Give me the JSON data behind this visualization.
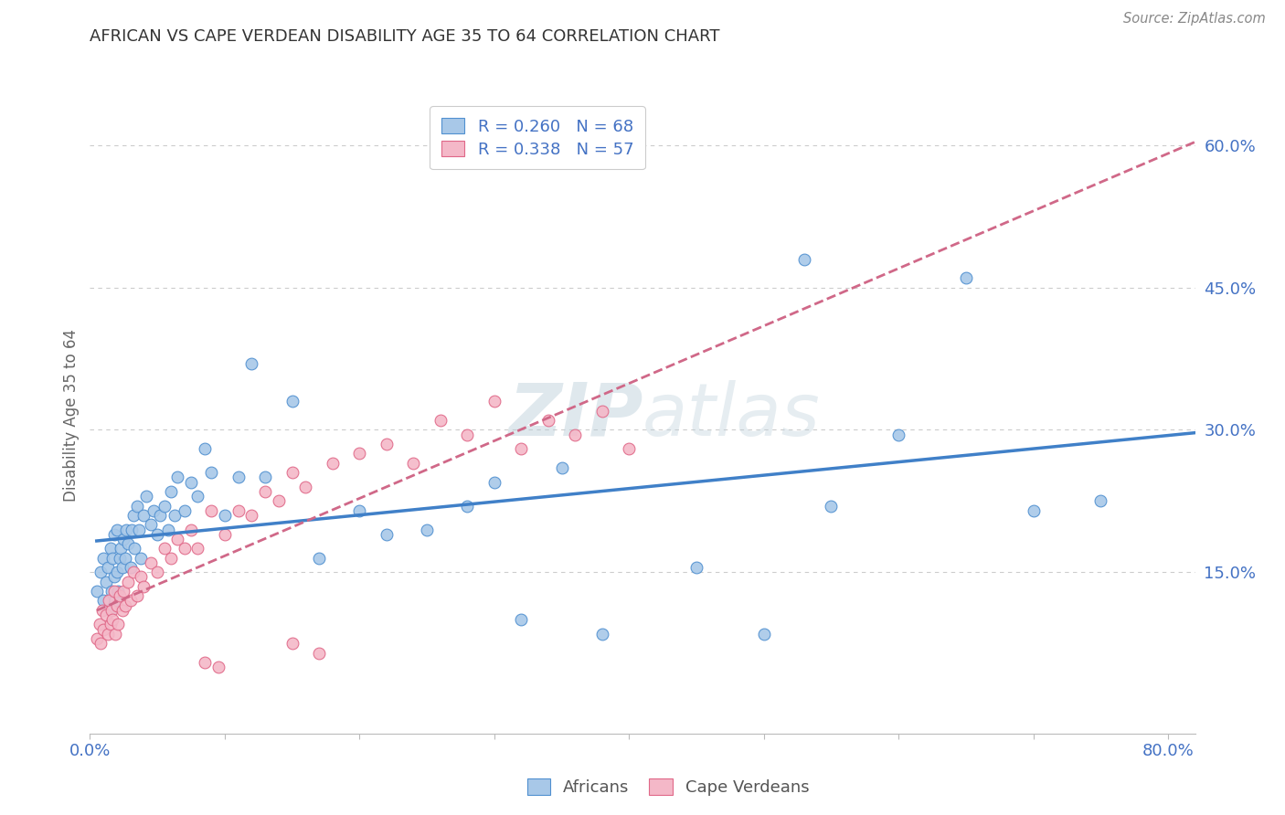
{
  "title": "AFRICAN VS CAPE VERDEAN DISABILITY AGE 35 TO 64 CORRELATION CHART",
  "source_text": "Source: ZipAtlas.com",
  "ylabel": "Disability Age 35 to 64",
  "xlim": [
    0.0,
    0.82
  ],
  "ylim": [
    -0.02,
    0.65
  ],
  "xtick_positions": [
    0.0,
    0.1,
    0.2,
    0.3,
    0.4,
    0.5,
    0.6,
    0.7,
    0.8
  ],
  "xticklabels": [
    "0.0%",
    "",
    "",
    "",
    "",
    "",
    "",
    "",
    "80.0%"
  ],
  "ytick_positions": [
    0.15,
    0.3,
    0.45,
    0.6
  ],
  "ytick_labels": [
    "15.0%",
    "30.0%",
    "45.0%",
    "60.0%"
  ],
  "african_R": 0.26,
  "african_N": 68,
  "cape_verdean_R": 0.338,
  "cape_verdean_N": 57,
  "african_color": "#a8c8e8",
  "cape_verdean_color": "#f4b8c8",
  "african_edge_color": "#5090d0",
  "cape_verdean_edge_color": "#e06888",
  "african_line_color": "#4080c8",
  "cape_verdean_line_color": "#d06888",
  "watermark_color": "#c8d8e8",
  "background_color": "#ffffff",
  "grid_color": "#cccccc",
  "african_x": [
    0.005,
    0.008,
    0.01,
    0.01,
    0.012,
    0.013,
    0.015,
    0.015,
    0.016,
    0.017,
    0.018,
    0.018,
    0.019,
    0.02,
    0.02,
    0.021,
    0.022,
    0.023,
    0.024,
    0.025,
    0.026,
    0.027,
    0.028,
    0.03,
    0.031,
    0.032,
    0.033,
    0.035,
    0.036,
    0.038,
    0.04,
    0.042,
    0.045,
    0.047,
    0.05,
    0.052,
    0.055,
    0.058,
    0.06,
    0.063,
    0.065,
    0.07,
    0.075,
    0.08,
    0.085,
    0.09,
    0.1,
    0.11,
    0.12,
    0.13,
    0.15,
    0.17,
    0.2,
    0.22,
    0.25,
    0.28,
    0.3,
    0.32,
    0.35,
    0.38,
    0.45,
    0.5,
    0.53,
    0.55,
    0.6,
    0.65,
    0.7,
    0.75
  ],
  "african_y": [
    0.13,
    0.15,
    0.12,
    0.165,
    0.14,
    0.155,
    0.11,
    0.175,
    0.13,
    0.165,
    0.145,
    0.19,
    0.12,
    0.15,
    0.195,
    0.13,
    0.165,
    0.175,
    0.155,
    0.185,
    0.165,
    0.195,
    0.18,
    0.155,
    0.195,
    0.21,
    0.175,
    0.22,
    0.195,
    0.165,
    0.21,
    0.23,
    0.2,
    0.215,
    0.19,
    0.21,
    0.22,
    0.195,
    0.235,
    0.21,
    0.25,
    0.215,
    0.245,
    0.23,
    0.28,
    0.255,
    0.21,
    0.25,
    0.37,
    0.25,
    0.33,
    0.165,
    0.215,
    0.19,
    0.195,
    0.22,
    0.245,
    0.1,
    0.26,
    0.085,
    0.155,
    0.085,
    0.48,
    0.22,
    0.295,
    0.46,
    0.215,
    0.225
  ],
  "cape_verdean_x": [
    0.005,
    0.007,
    0.008,
    0.009,
    0.01,
    0.012,
    0.013,
    0.014,
    0.015,
    0.016,
    0.017,
    0.018,
    0.019,
    0.02,
    0.021,
    0.022,
    0.024,
    0.025,
    0.026,
    0.028,
    0.03,
    0.032,
    0.035,
    0.038,
    0.04,
    0.045,
    0.05,
    0.055,
    0.06,
    0.065,
    0.07,
    0.075,
    0.08,
    0.09,
    0.1,
    0.11,
    0.12,
    0.13,
    0.14,
    0.15,
    0.16,
    0.18,
    0.2,
    0.22,
    0.24,
    0.26,
    0.28,
    0.3,
    0.32,
    0.34,
    0.36,
    0.38,
    0.4,
    0.15,
    0.17,
    0.085,
    0.095
  ],
  "cape_verdean_y": [
    0.08,
    0.095,
    0.075,
    0.11,
    0.09,
    0.105,
    0.085,
    0.12,
    0.095,
    0.11,
    0.1,
    0.13,
    0.085,
    0.115,
    0.095,
    0.125,
    0.11,
    0.13,
    0.115,
    0.14,
    0.12,
    0.15,
    0.125,
    0.145,
    0.135,
    0.16,
    0.15,
    0.175,
    0.165,
    0.185,
    0.175,
    0.195,
    0.175,
    0.215,
    0.19,
    0.215,
    0.21,
    0.235,
    0.225,
    0.255,
    0.24,
    0.265,
    0.275,
    0.285,
    0.265,
    0.31,
    0.295,
    0.33,
    0.28,
    0.31,
    0.295,
    0.32,
    0.28,
    0.075,
    0.065,
    0.055,
    0.05
  ]
}
